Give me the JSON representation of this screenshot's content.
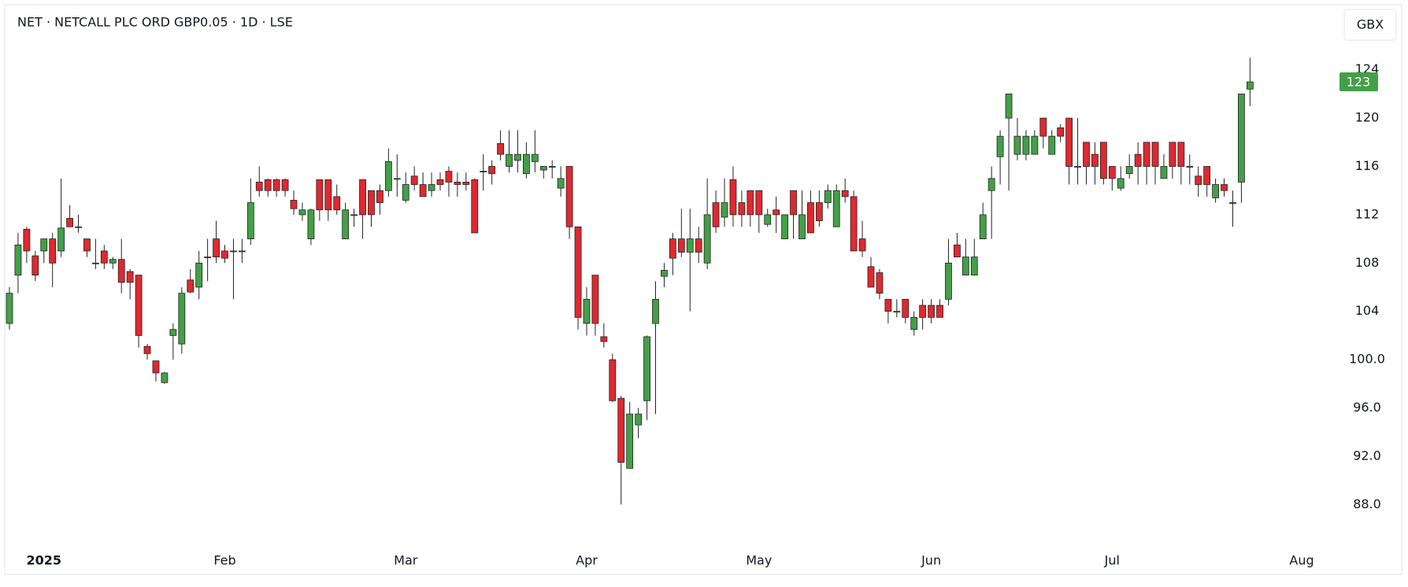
{
  "chart_data": {
    "type": "candlestick",
    "title": "NET · NETCALL PLC ORD GBP0.05 · 1D · LSE",
    "currency": "GBX",
    "last_price": 123,
    "up_color": "#43a047",
    "down_color": "#e0282f",
    "grid": false,
    "ylim": [
      84.5,
      126
    ],
    "yticks": [
      {
        "value": 88,
        "label": "88.0"
      },
      {
        "value": 92,
        "label": "92.0"
      },
      {
        "value": 96,
        "label": "96.0"
      },
      {
        "value": 100,
        "label": "100.0"
      },
      104,
      108,
      112,
      116,
      120,
      124
    ],
    "categories": [
      null,
      null,
      null,
      null,
      "2025",
      null,
      null,
      null,
      null,
      null,
      null,
      null,
      null,
      null,
      null,
      null,
      null,
      null,
      null,
      null,
      null,
      null,
      null,
      null,
      null,
      "Feb",
      null,
      null,
      null,
      null,
      null,
      null,
      null,
      null,
      null,
      null,
      null,
      null,
      null,
      null,
      null,
      null,
      null,
      null,
      null,
      null,
      "Mar",
      null,
      null,
      null,
      null,
      null,
      null,
      null,
      null,
      null,
      null,
      null,
      null,
      null,
      null,
      null,
      null,
      null,
      null,
      null,
      null,
      "Apr",
      null,
      null,
      null,
      null,
      null,
      null,
      null,
      null,
      null,
      null,
      null,
      null,
      null,
      null,
      null,
      null,
      null,
      null,
      null,
      "May",
      null,
      null,
      null,
      null,
      null,
      null,
      null,
      null,
      null,
      null,
      null,
      null,
      null,
      null,
      null,
      null,
      null,
      null,
      null,
      "Jun",
      null,
      null,
      null,
      null,
      null,
      null,
      null,
      null,
      null,
      null,
      null,
      null,
      null,
      null,
      null,
      null,
      null,
      null,
      null,
      null,
      "Jul",
      null,
      null,
      null,
      null,
      null,
      null,
      null,
      null,
      null,
      null,
      null,
      null,
      null,
      null,
      null,
      null,
      null,
      null,
      null,
      null,
      null,
      "Aug"
    ],
    "open": [
      103,
      107,
      110.8,
      108.6,
      109,
      110,
      109,
      111.7,
      111,
      110,
      108,
      109,
      108,
      108.3,
      107.3,
      107,
      101.1,
      99.9,
      98.1,
      102,
      101.3,
      106.6,
      106,
      108.5,
      110,
      109,
      109,
      109,
      110,
      114.7,
      114.9,
      114.9,
      114.9,
      113.2,
      112,
      110,
      114.9,
      114.9,
      113.5,
      110,
      112,
      114.9,
      114,
      114,
      114,
      115,
      113.2,
      115.2,
      114.5,
      114,
      114.9,
      115.6,
      114.7,
      114.7,
      114.9,
      115.6,
      116,
      117.9,
      116,
      116.5,
      115.4,
      116.4,
      115.7,
      116,
      114.2,
      116,
      111,
      103,
      107,
      101.9,
      100,
      96.8,
      91,
      94.6,
      96.6,
      103,
      106.9,
      110,
      110,
      108.9,
      110,
      108,
      113,
      111.8,
      114.9,
      113,
      114,
      114,
      111.2,
      112.4,
      110,
      114,
      110,
      113,
      113,
      113,
      111,
      114,
      113.5,
      110,
      107.7,
      107.2,
      105,
      104,
      105,
      102.5,
      104.5,
      104.5,
      104.5,
      105,
      109.5,
      107,
      107,
      110,
      114,
      116.8,
      120,
      117,
      117,
      117,
      120,
      117,
      119.2,
      120,
      116,
      118,
      117,
      118,
      116,
      114.2,
      115.4,
      117,
      118,
      118,
      115,
      118,
      118,
      116,
      115.2,
      116,
      113.4,
      114.5,
      113,
      114.7,
      122.4,
      null,
      null,
      null,
      null,
      null,
      null
    ],
    "high": [
      106,
      110.5,
      111,
      109,
      110,
      110.5,
      115,
      112.8,
      112,
      110,
      110,
      109.5,
      108.5,
      110,
      107.5,
      107,
      101.3,
      99.9,
      99,
      103,
      106,
      107.5,
      109,
      110,
      111.5,
      109.5,
      110,
      110,
      115,
      116,
      115,
      115,
      115,
      114,
      113,
      112.5,
      114.9,
      114.9,
      114.5,
      113,
      112.5,
      114.9,
      114,
      114.5,
      117.5,
      117,
      115.5,
      116,
      115.5,
      115.5,
      115.5,
      116,
      115.5,
      115.5,
      115,
      117,
      116.5,
      119,
      119,
      119,
      118,
      119,
      116,
      116.5,
      116,
      116,
      111,
      106,
      107,
      103,
      100.5,
      97,
      96.5,
      96,
      102,
      106.5,
      108,
      110.5,
      112.5,
      112.5,
      111,
      115,
      114,
      115,
      116,
      114,
      114,
      114,
      112.5,
      113.5,
      112,
      114,
      114,
      114,
      114,
      114.5,
      114.5,
      115,
      114,
      111.5,
      108.5,
      107.5,
      105,
      105,
      105,
      104,
      105,
      105,
      105,
      110,
      110.5,
      110,
      110,
      113,
      116,
      119,
      122,
      120,
      119,
      119,
      120,
      119,
      119.5,
      120,
      120,
      118,
      118,
      118,
      116,
      116,
      117,
      118,
      118,
      118,
      117,
      118,
      118,
      117,
      116,
      116,
      115,
      115,
      114,
      122,
      125,
      null,
      null,
      null,
      null,
      null,
      null
    ],
    "low": [
      102.5,
      105.5,
      108,
      106.5,
      108,
      106,
      108.5,
      111,
      110.5,
      108.5,
      107.5,
      107.5,
      107.5,
      105.5,
      105,
      101,
      100,
      98.2,
      98,
      100,
      100.5,
      105.5,
      105,
      106.5,
      108,
      108,
      105,
      108,
      109.5,
      113.5,
      113.5,
      113.5,
      113.5,
      112,
      111.5,
      109.5,
      111.5,
      111.5,
      112,
      110,
      111,
      110,
      111,
      112,
      113.5,
      113.5,
      113,
      114,
      113.5,
      113.5,
      114,
      113.5,
      113.5,
      114,
      110.5,
      114,
      114.5,
      116.5,
      115.5,
      115.5,
      115,
      115.5,
      115,
      115,
      113.5,
      110,
      102.5,
      102,
      102,
      101,
      96.5,
      88,
      91,
      93.5,
      95,
      95.5,
      106,
      107,
      108.5,
      104,
      108,
      107.5,
      110.5,
      111,
      111,
      111,
      111,
      110.5,
      111,
      110.5,
      110,
      110,
      110,
      110.5,
      111,
      112.5,
      111,
      113,
      109,
      108.5,
      106,
      105,
      103,
      103.5,
      103,
      102,
      102.5,
      103,
      103.5,
      104.5,
      108.5,
      107,
      107,
      110,
      110,
      114.5,
      114,
      116.5,
      116.5,
      117,
      117.5,
      117,
      118,
      114.5,
      114.5,
      114.5,
      114.5,
      114.5,
      114,
      114,
      115,
      114.5,
      114.5,
      114.5,
      115,
      115,
      114.5,
      114.5,
      113.5,
      113.5,
      113,
      113.5,
      111,
      113,
      121,
      null,
      null,
      null,
      null,
      null,
      null
    ],
    "close": [
      105.5,
      109.5,
      109,
      107,
      110,
      108,
      110.9,
      111,
      111,
      109,
      108,
      108,
      108.3,
      106.4,
      106.4,
      102,
      100.5,
      98.9,
      98.9,
      102.5,
      105.5,
      105.6,
      108,
      108.5,
      108.5,
      108.4,
      109,
      109,
      113,
      114,
      114,
      114,
      114,
      112.5,
      112.4,
      112.4,
      112.4,
      112.4,
      112.4,
      112.4,
      112,
      112,
      112,
      113,
      116.4,
      115,
      114.5,
      114.5,
      113.5,
      114.5,
      114.5,
      114.7,
      114.5,
      114.5,
      110.5,
      115.6,
      115.4,
      117,
      117,
      117,
      117,
      117,
      116,
      116,
      115,
      111,
      103.5,
      105,
      103,
      101.5,
      96.6,
      91.5,
      95.5,
      95.5,
      101.9,
      105,
      107.4,
      108.4,
      108.9,
      110,
      108.9,
      112,
      111,
      113,
      112,
      112,
      112,
      112,
      112,
      112,
      112,
      112,
      112,
      110.5,
      111.5,
      114,
      114,
      113.5,
      109,
      109,
      106,
      105.5,
      104,
      104,
      103.5,
      103.5,
      103.5,
      103.5,
      103.5,
      108,
      108.5,
      108.5,
      108.5,
      112,
      115,
      118.5,
      122,
      118.5,
      118.5,
      118.5,
      118.5,
      118.5,
      118.5,
      116,
      116,
      116,
      116,
      115,
      115,
      115,
      116,
      116,
      116,
      116,
      116,
      116,
      116,
      116,
      114.5,
      114.5,
      114.5,
      114,
      113,
      122,
      123,
      null,
      null,
      null,
      null,
      null,
      null
    ]
  }
}
